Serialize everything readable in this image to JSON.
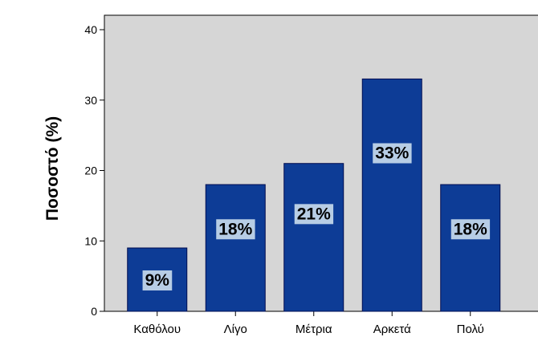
{
  "chart_data": {
    "type": "bar",
    "categories": [
      "Καθόλου",
      "Λίγο",
      "Μέτρια",
      "Αρκετά",
      "Πολύ"
    ],
    "values": [
      9,
      18,
      21,
      33,
      18
    ],
    "data_labels": [
      "9%",
      "18%",
      "21%",
      "33%",
      "18%"
    ],
    "yticks": [
      0,
      10,
      20,
      30,
      40
    ],
    "ylim": [
      0,
      40
    ],
    "xlabel": "",
    "ylabel": "Ποσοστό (%)",
    "title": "",
    "grid": false,
    "legend": "none",
    "colors": {
      "plot_background": "#d6d6d6",
      "bar_fill": "#0d3c96",
      "bar_edge": "#000c50",
      "label_box": "#b7cde5"
    }
  }
}
